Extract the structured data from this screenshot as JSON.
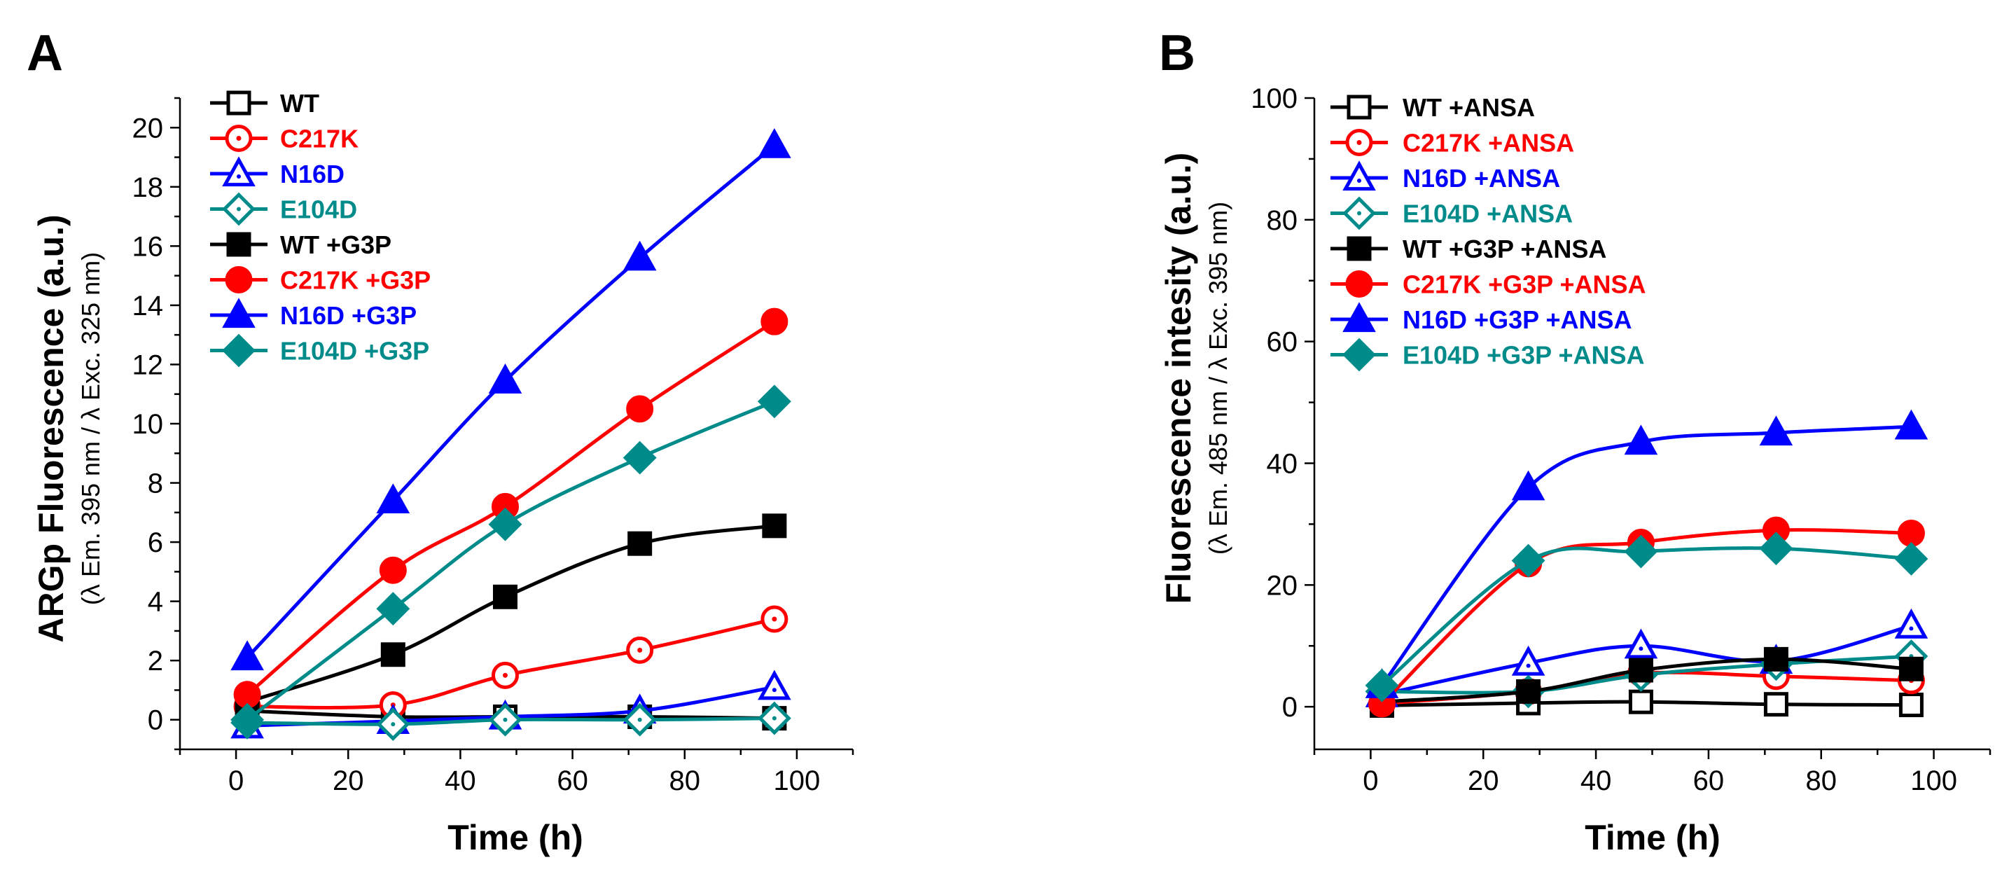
{
  "chart_data": [
    {
      "type": "line",
      "panel_label": "A",
      "xlabel": "Time (h)",
      "ylabel": "ARGp Fluorescence (a.u.)",
      "ylabel_sub": "(λ Em. 395 nm / λ Exc. 325 nm)",
      "xlim": [
        -10,
        110
      ],
      "ylim": [
        -1,
        21
      ],
      "xticks": [
        0,
        20,
        40,
        60,
        80,
        100
      ],
      "yticks": [
        0,
        2,
        4,
        6,
        8,
        10,
        12,
        14,
        16,
        18,
        20
      ],
      "legend_position": "top-left",
      "x": [
        2,
        28,
        48,
        72,
        96
      ],
      "series": [
        {
          "name": "WT",
          "color": "#000000",
          "marker": "square",
          "filled": false,
          "values": [
            0.3,
            0.1,
            0.1,
            0.1,
            0.05
          ]
        },
        {
          "name": "C217K",
          "color": "#ff0000",
          "marker": "circle",
          "filled": false,
          "values": [
            0.45,
            0.5,
            1.5,
            2.35,
            3.4
          ]
        },
        {
          "name": "N16D",
          "color": "#0000ff",
          "marker": "triangle",
          "filled": false,
          "values": [
            -0.2,
            -0.05,
            0.1,
            0.3,
            1.1
          ]
        },
        {
          "name": "E104D",
          "color": "#008b8b",
          "marker": "diamond",
          "filled": false,
          "values": [
            -0.1,
            -0.15,
            0.0,
            0.0,
            0.05
          ]
        },
        {
          "name": "WT +G3P",
          "color": "#000000",
          "marker": "square",
          "filled": true,
          "values": [
            0.6,
            2.2,
            4.15,
            5.95,
            6.55
          ]
        },
        {
          "name": "C217K +G3P",
          "color": "#ff0000",
          "marker": "circle",
          "filled": true,
          "values": [
            0.85,
            5.05,
            7.2,
            10.5,
            13.45
          ]
        },
        {
          "name": "N16D +G3P",
          "color": "#0000ff",
          "marker": "triangle",
          "filled": true,
          "values": [
            2.1,
            7.4,
            11.45,
            15.6,
            19.4
          ]
        },
        {
          "name": "E104D +G3P",
          "color": "#008b8b",
          "marker": "diamond",
          "filled": true,
          "values": [
            0.0,
            3.75,
            6.6,
            8.85,
            10.75
          ]
        }
      ]
    },
    {
      "type": "line",
      "panel_label": "B",
      "xlabel": "Time (h)",
      "ylabel": "Fluorescence intesity  (a.u.)",
      "ylabel_sub": "(λ Em. 485 nm / λ Exc. 395 nm)",
      "xlim": [
        -10,
        110
      ],
      "ylim": [
        -7,
        100
      ],
      "xticks": [
        0,
        20,
        40,
        60,
        80,
        100
      ],
      "yticks": [
        0,
        20,
        40,
        60,
        80,
        100
      ],
      "legend_position": "top-left",
      "x": [
        2,
        28,
        48,
        72,
        96
      ],
      "series": [
        {
          "name": "WT +ANSA",
          "color": "#000000",
          "marker": "square",
          "filled": false,
          "values": [
            0.2,
            0.6,
            0.8,
            0.4,
            0.3
          ]
        },
        {
          "name": "C217K +ANSA",
          "color": "#ff0000",
          "marker": "circle",
          "filled": false,
          "values": [
            0.5,
            2.5,
            5.5,
            5.0,
            4.3
          ]
        },
        {
          "name": "N16D +ANSA",
          "color": "#0000ff",
          "marker": "triangle",
          "filled": false,
          "values": [
            2.0,
            7.2,
            10.0,
            7.5,
            13.3
          ]
        },
        {
          "name": "E104D +ANSA",
          "color": "#008b8b",
          "marker": "diamond",
          "filled": false,
          "values": [
            2.5,
            2.5,
            5.2,
            7.0,
            8.3
          ]
        },
        {
          "name": "WT +G3P +ANSA",
          "color": "#000000",
          "marker": "square",
          "filled": true,
          "values": [
            0.8,
            2.5,
            6.0,
            7.8,
            6.2
          ]
        },
        {
          "name": "C217K +G3P +ANSA",
          "color": "#ff0000",
          "marker": "circle",
          "filled": true,
          "values": [
            0.5,
            23.5,
            27.0,
            29.0,
            28.5
          ]
        },
        {
          "name": "N16D +G3P +ANSA",
          "color": "#0000ff",
          "marker": "triangle",
          "filled": true,
          "values": [
            3.5,
            36.0,
            43.5,
            45.0,
            46.0
          ]
        },
        {
          "name": "E104D +G3P +ANSA",
          "color": "#008b8b",
          "marker": "diamond",
          "filled": true,
          "values": [
            3.5,
            24.0,
            25.5,
            26.0,
            24.3
          ]
        }
      ]
    }
  ]
}
